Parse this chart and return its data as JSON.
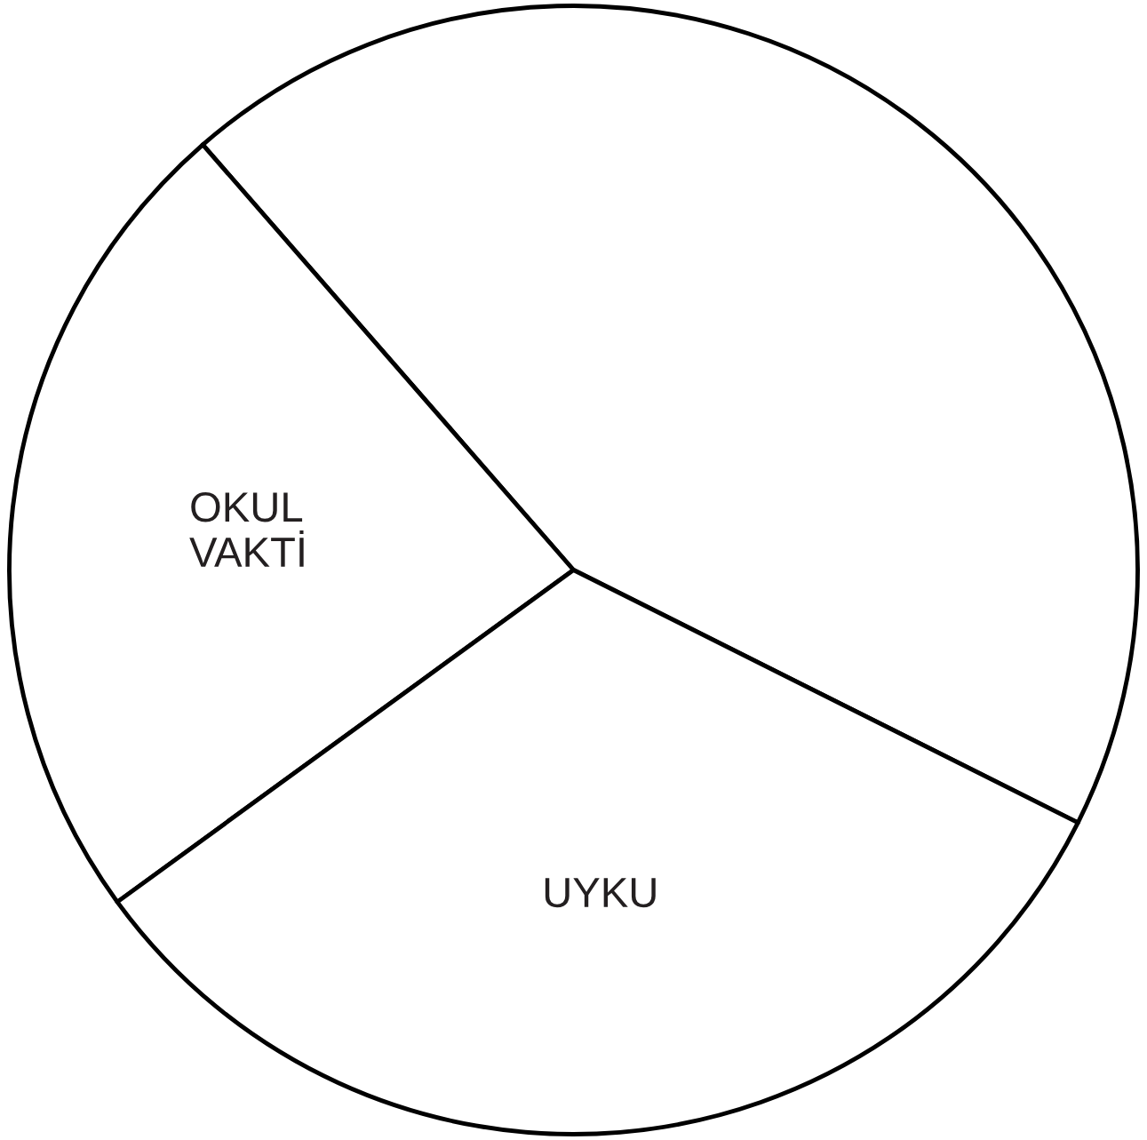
{
  "chart_data": {
    "type": "pie",
    "categories": [
      null,
      "OKUL\nVAKTİ",
      "UYKU"
    ],
    "values": [
      43.8,
      23.6,
      32.6
    ],
    "colors": [
      "#ffffff",
      "#ffffff",
      "#ffffff"
    ]
  }
}
